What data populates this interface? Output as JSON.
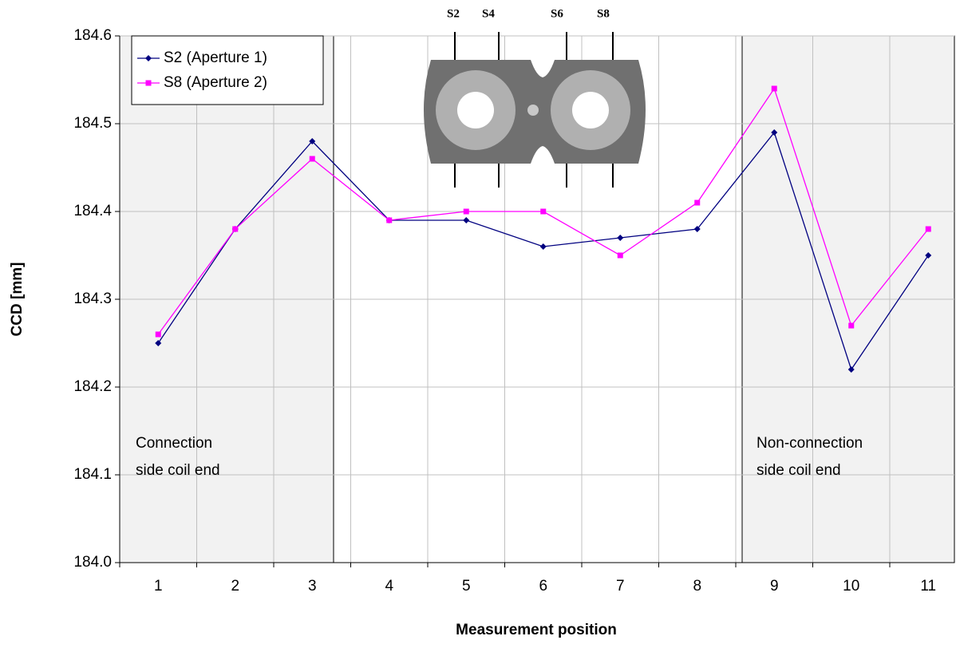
{
  "chart_data": {
    "type": "line",
    "x_label": "Measurement position",
    "y_label": "CCD [mm]",
    "categories": [
      "1",
      "2",
      "3",
      "4",
      "5",
      "6",
      "7",
      "8",
      "9",
      "10",
      "11"
    ],
    "series": [
      {
        "name": "S2 (Aperture 1)",
        "color": "#000080",
        "marker": "diamond",
        "values": [
          184.25,
          184.38,
          184.48,
          184.39,
          184.39,
          184.36,
          184.37,
          184.38,
          184.49,
          184.22,
          184.35
        ]
      },
      {
        "name": "S8 (Aperture 2)",
        "color": "#ff00ff",
        "marker": "square",
        "values": [
          184.26,
          184.38,
          184.46,
          184.39,
          184.4,
          184.4,
          184.35,
          184.41,
          184.54,
          184.27,
          184.38
        ]
      }
    ],
    "ylim": [
      184,
      184.6
    ],
    "yticks": [
      {
        "value": 184,
        "label": "184.0"
      },
      184.1,
      184.2,
      184.3,
      184.4,
      184.5,
      184.6
    ],
    "grid": true,
    "legend": "upper left",
    "annotations": {
      "left_region": [
        "Connection",
        "side coil end"
      ],
      "right_region": [
        "Non-connection",
        "side coil end"
      ],
      "diagram_labels": [
        "S2",
        "S4",
        "S6",
        "S8"
      ]
    }
  }
}
